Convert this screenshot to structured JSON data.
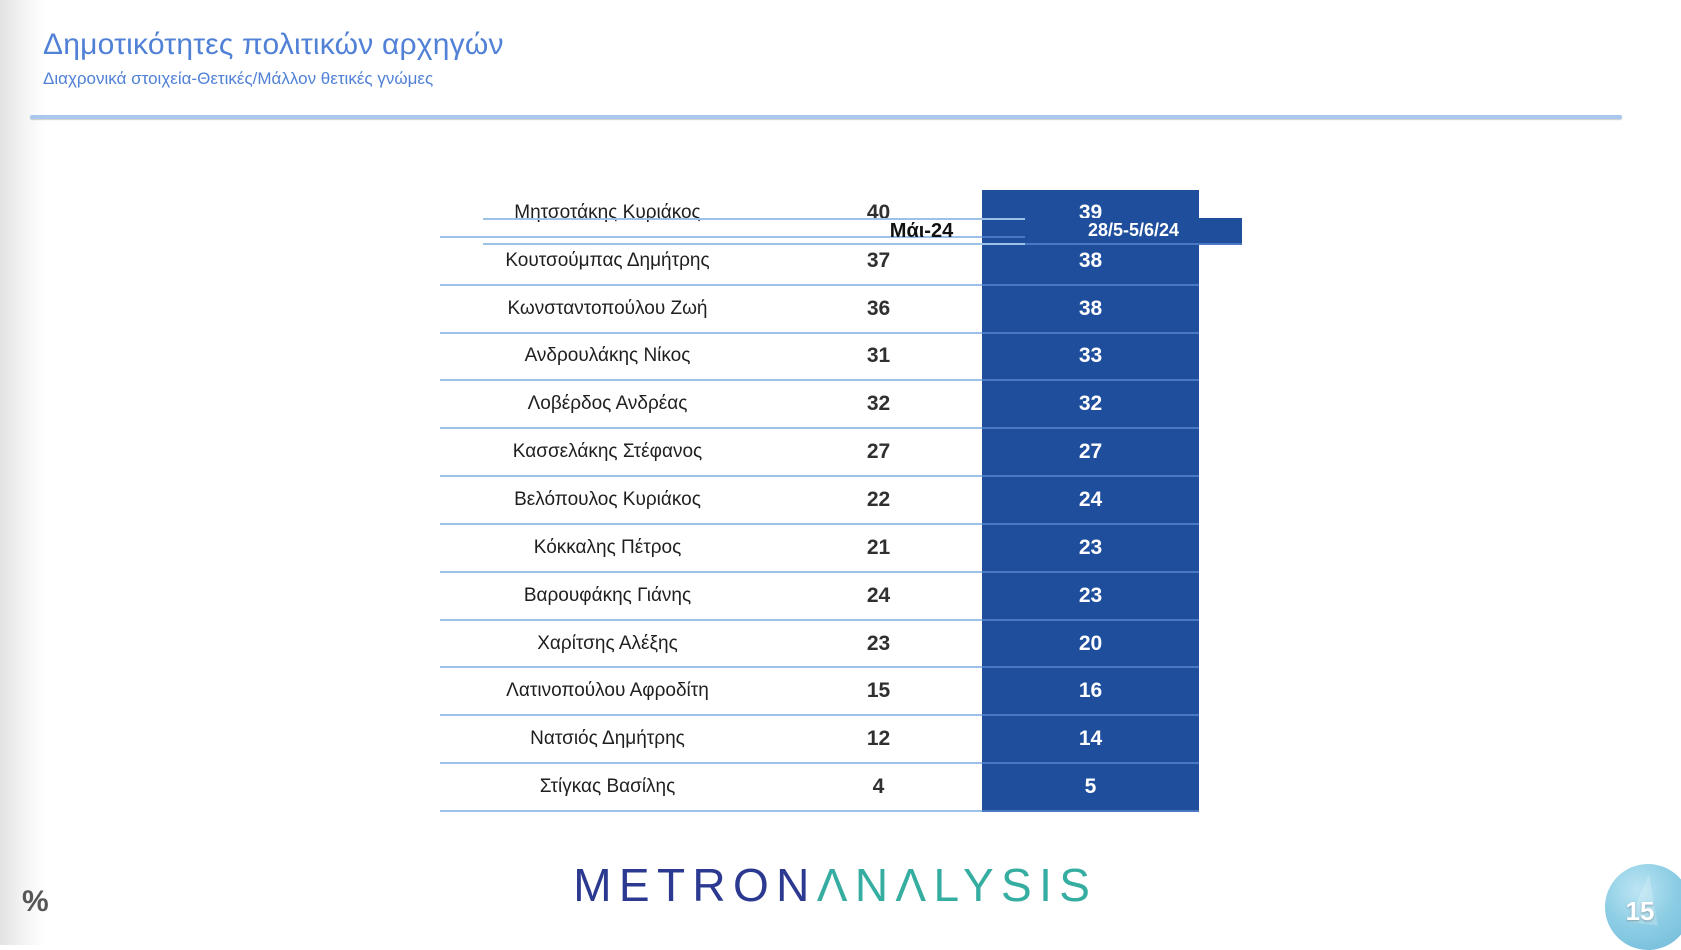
{
  "slide": {
    "title": "Δημοτικότητες πολιτικών αρχηγών",
    "subtitle": "Διαχρονικά στοιχεία-Θετικές/Μάλλον θετικές γνώμες"
  },
  "table": {
    "header": {
      "name": "",
      "may": "Μάι-24",
      "current": "28/5-5/6/24"
    },
    "rows": [
      {
        "name": "Μητσοτάκης Κυριάκος",
        "may": "40",
        "current": "39"
      },
      {
        "name": "Κουτσούμπας Δημήτρης",
        "may": "37",
        "current": "38"
      },
      {
        "name": "Κωνσταντοπούλου Ζωή",
        "may": "36",
        "current": "38"
      },
      {
        "name": "Ανδρουλάκης Νίκος",
        "may": "31",
        "current": "33"
      },
      {
        "name": "Λοβέρδος Ανδρέας",
        "may": "32",
        "current": "32"
      },
      {
        "name": "Κασσελάκης Στέφανος",
        "may": "27",
        "current": "27"
      },
      {
        "name": "Βελόπουλος Κυριάκος",
        "may": "22",
        "current": "24"
      },
      {
        "name": "Κόκκαλης Πέτρος",
        "may": "21",
        "current": "23"
      },
      {
        "name": "Βαρουφάκης Γιάνης",
        "may": "24",
        "current": "23"
      },
      {
        "name": "Χαρίτσης Αλέξης",
        "may": "23",
        "current": "20"
      },
      {
        "name": "Λατινοπούλου Αφροδίτη",
        "may": "15",
        "current": "16"
      },
      {
        "name": "Νατσιός Δημήτρης",
        "may": "12",
        "current": "14"
      },
      {
        "name": "Στίγκας Βασίλης",
        "may": "4",
        "current": "5"
      }
    ]
  },
  "footer": {
    "percent_label": "%",
    "logo": {
      "metron": "METRON",
      "analysis": "ΛNΛLYSIS"
    },
    "page_number": "15"
  },
  "colors": {
    "title_blue": "#5081d6",
    "accent_rule": "#a9c7ef",
    "column_dark_blue": "#1f4e9c",
    "row_separator_light": "#9cc2e8",
    "blue_column_separator": "#4a78c2",
    "logo_navy": "#2b3990",
    "logo_teal": "#35ada0",
    "badge_blue": "#7cc3de"
  },
  "chart_data": {
    "type": "table",
    "title": "Δημοτικότητες πολιτικών αρχηγών",
    "subtitle": "Διαχρονικά στοιχεία-Θετικές/Μάλλον θετικές γνώμες",
    "unit": "%",
    "columns": [
      "",
      "Μάι-24",
      "28/5-5/6/24"
    ],
    "categories": [
      "Μητσοτάκης Κυριάκος",
      "Κουτσούμπας Δημήτρης",
      "Κωνσταντοπούλου Ζωή",
      "Ανδρουλάκης Νίκος",
      "Λοβέρδος Ανδρέας",
      "Κασσελάκης Στέφανος",
      "Βελόπουλος Κυριάκος",
      "Κόκκαλης Πέτρος",
      "Βαρουφάκης Γιάνης",
      "Χαρίτσης Αλέξης",
      "Λατινοπούλου Αφροδίτη",
      "Νατσιός Δημήτρης",
      "Στίγκας Βασίλης"
    ],
    "series": [
      {
        "name": "Μάι-24",
        "values": [
          40,
          37,
          36,
          31,
          32,
          27,
          22,
          21,
          24,
          23,
          15,
          12,
          4
        ]
      },
      {
        "name": "28/5-5/6/24",
        "values": [
          39,
          38,
          38,
          33,
          32,
          27,
          24,
          23,
          23,
          20,
          16,
          14,
          5
        ]
      }
    ]
  }
}
